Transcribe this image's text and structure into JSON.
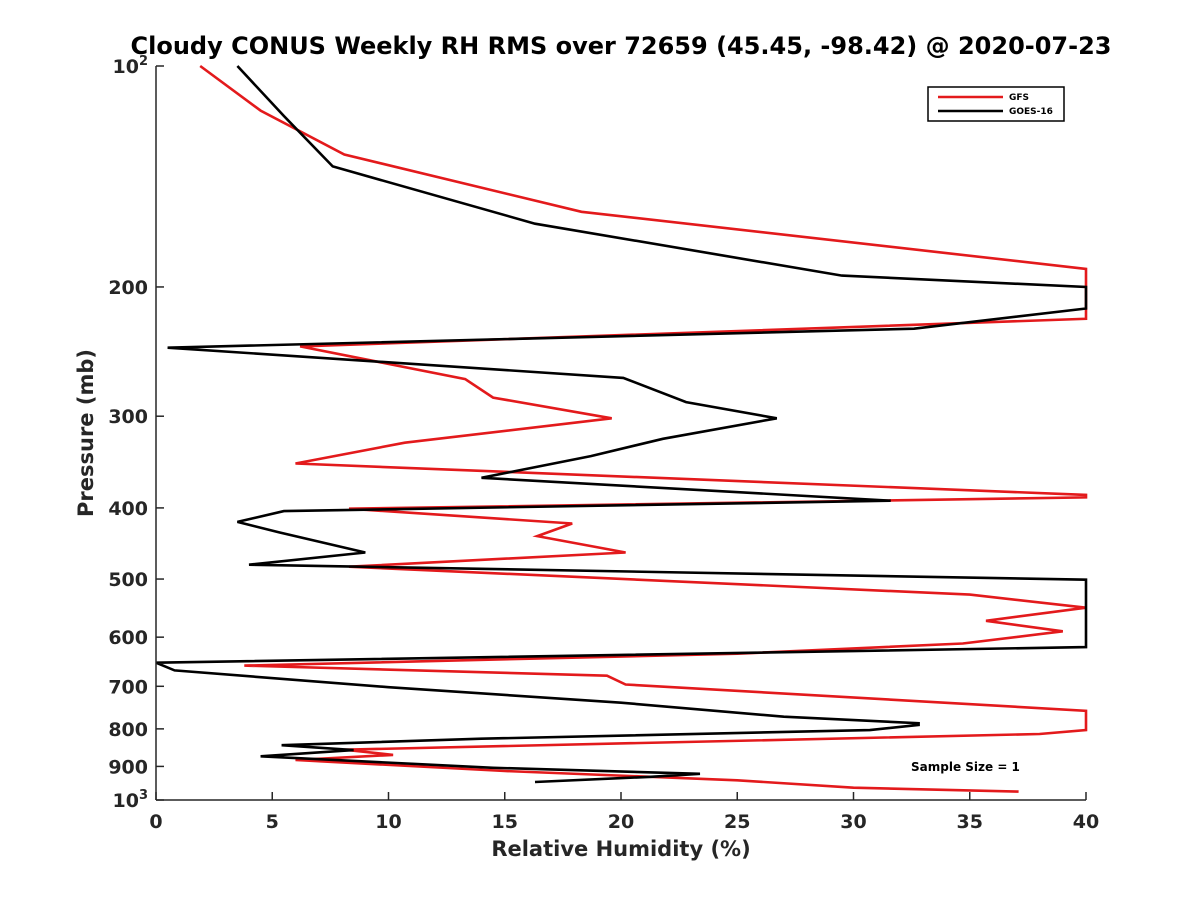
{
  "chart_data": {
    "type": "line",
    "title": "Cloudy CONUS Weekly RH RMS over 72659 (45.45, -98.42) @ 2020-07-23",
    "xlabel": "Relative Humidity (%)",
    "ylabel": "Pressure (mb)",
    "xlim": [
      0,
      40
    ],
    "ylim": [
      100,
      1000
    ],
    "y_scale": "log",
    "y_reversed": true,
    "grid": false,
    "legend_position": "top-right",
    "x_ticks": [
      "0",
      "5",
      "10",
      "15",
      "20",
      "25",
      "30",
      "35",
      "40"
    ],
    "y_ticks": [
      {
        "value": 100,
        "base": "10",
        "exp": "2"
      },
      {
        "value": 200,
        "label": "200"
      },
      {
        "value": 300,
        "label": "300"
      },
      {
        "value": 400,
        "label": "400"
      },
      {
        "value": 500,
        "label": "500"
      },
      {
        "value": 600,
        "label": "600"
      },
      {
        "value": 700,
        "label": "700"
      },
      {
        "value": 800,
        "label": "800"
      },
      {
        "value": 900,
        "label": "900"
      },
      {
        "value": 1000,
        "base": "10",
        "exp": "3"
      }
    ],
    "series": [
      {
        "name": "GFS",
        "color": "#e31a1c",
        "points": [
          [
            1.9,
            100
          ],
          [
            4.5,
            115
          ],
          [
            8.1,
            132
          ],
          [
            18.3,
            158
          ],
          [
            40.0,
            189
          ],
          [
            40.0,
            221
          ],
          [
            6.2,
            241
          ],
          [
            13.3,
            267
          ],
          [
            14.5,
            283
          ],
          [
            19.6,
            302
          ],
          [
            10.7,
            326
          ],
          [
            6.0,
            348
          ],
          [
            40.0,
            384
          ],
          [
            40.0,
            387
          ],
          [
            8.3,
            401
          ],
          [
            17.9,
            420
          ],
          [
            16.4,
            437
          ],
          [
            20.2,
            460
          ],
          [
            8.3,
            481
          ],
          [
            35.0,
            525
          ],
          [
            40.0,
            547
          ],
          [
            35.7,
            570
          ],
          [
            39.0,
            589
          ],
          [
            34.7,
            612
          ],
          [
            25.0,
            632
          ],
          [
            3.8,
            656
          ],
          [
            19.4,
            677
          ],
          [
            20.2,
            696
          ],
          [
            40.0,
            756
          ],
          [
            40.0,
            803
          ],
          [
            38.0,
            813
          ],
          [
            8.1,
            854
          ],
          [
            10.2,
            868
          ],
          [
            6.0,
            882
          ],
          [
            15.0,
            913
          ],
          [
            25.0,
            940
          ],
          [
            30.0,
            962
          ],
          [
            37.1,
            974
          ]
        ]
      },
      {
        "name": "GOES-16",
        "color": "#000000",
        "points": [
          [
            3.5,
            100
          ],
          [
            5.5,
            117
          ],
          [
            7.6,
            137
          ],
          [
            16.3,
            164
          ],
          [
            29.5,
            193
          ],
          [
            40.0,
            200
          ],
          [
            40.0,
            214
          ],
          [
            32.6,
            228
          ],
          [
            0.5,
            242
          ],
          [
            20.1,
            266
          ],
          [
            22.8,
            287
          ],
          [
            26.7,
            302
          ],
          [
            21.8,
            322
          ],
          [
            18.7,
            340
          ],
          [
            14.0,
            364
          ],
          [
            31.6,
            391
          ],
          [
            5.5,
            404
          ],
          [
            3.5,
            418
          ],
          [
            5.3,
            432
          ],
          [
            9.0,
            460
          ],
          [
            4.0,
            478
          ],
          [
            40.0,
            501
          ],
          [
            40.0,
            619
          ],
          [
            0.0,
            650
          ],
          [
            0.8,
            666
          ],
          [
            10.0,
            702
          ],
          [
            20.0,
            737
          ],
          [
            27.0,
            770
          ],
          [
            32.8,
            786
          ],
          [
            32.8,
            790
          ],
          [
            30.7,
            803
          ],
          [
            14.0,
            825
          ],
          [
            5.4,
            842
          ],
          [
            8.5,
            855
          ],
          [
            4.5,
            872
          ],
          [
            14.5,
            904
          ],
          [
            23.4,
            921
          ],
          [
            21.2,
            930
          ],
          [
            16.3,
            945
          ]
        ]
      }
    ],
    "annotations": [
      "Sample Size = 1"
    ]
  }
}
